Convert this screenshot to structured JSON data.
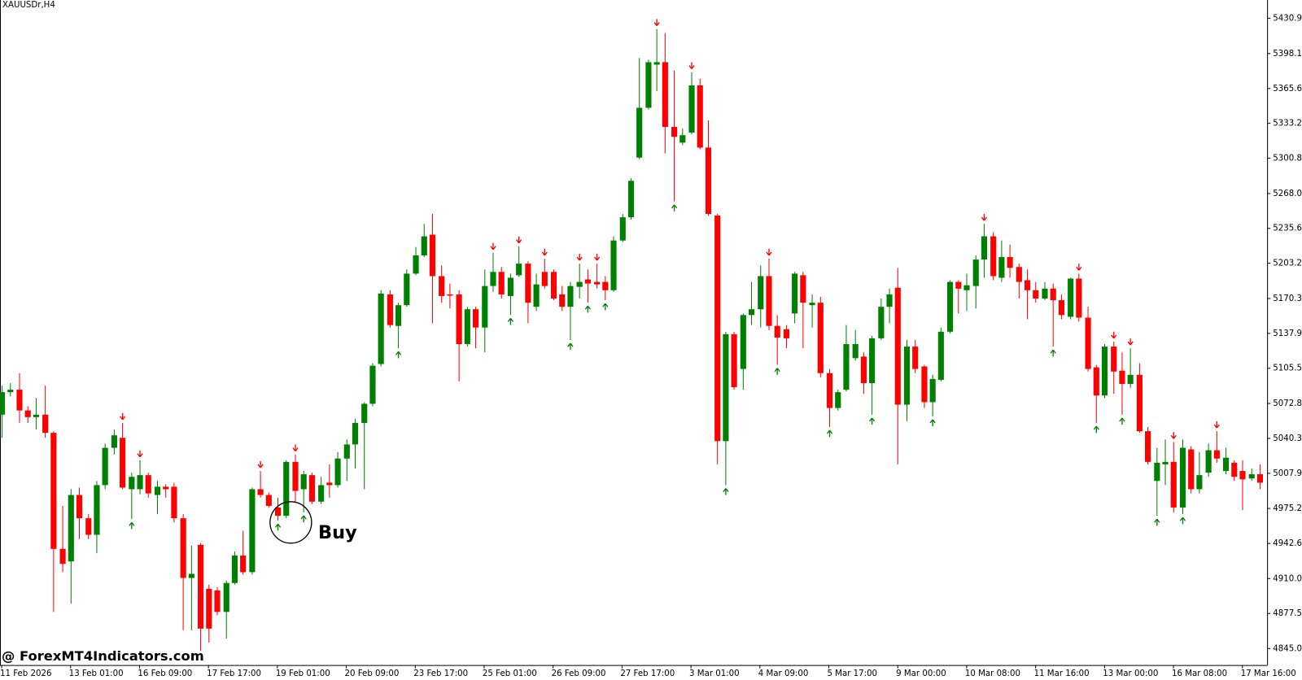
{
  "chart_data": {
    "type": "candlestick",
    "title": "XAUUSDr,H4",
    "annotation": "Buy",
    "watermark": "@ ForexMT4Indicators.com",
    "up_color": "#008000",
    "down_color": "#ff0000",
    "ylim": [
      4829.6,
      5447.9
    ],
    "yticks": [
      {
        "value": 4845.0,
        "label": "4845.00"
      },
      {
        "value": 4877.55,
        "label": "4877.55"
      },
      {
        "value": 4910.05,
        "label": "4910.05"
      },
      {
        "value": 4942.65,
        "label": "4942.65"
      },
      {
        "value": 4975.2,
        "label": "4975.20"
      },
      {
        "value": 5007.9,
        "label": "5007.90"
      },
      {
        "value": 5040.3,
        "label": "5040.30"
      },
      {
        "value": 5072.8,
        "label": "5072.80"
      },
      {
        "value": 5105.55,
        "label": "5105.55"
      },
      {
        "value": 5137.95,
        "label": "5137.95"
      },
      {
        "value": 5170.35,
        "label": "5170.35"
      },
      {
        "value": 5203.2,
        "label": "5203.20"
      },
      {
        "value": 5235.6,
        "label": "5235.60"
      },
      {
        "value": 5268.0,
        "label": "5268.00"
      },
      {
        "value": 5300.85,
        "label": "5300.85"
      },
      {
        "value": 5333.25,
        "label": "5333.25"
      },
      {
        "value": 5365.65,
        "label": "5365.65"
      },
      {
        "value": 5398.15,
        "label": "5398.15"
      },
      {
        "value": 5430.9,
        "label": "5430.90"
      }
    ],
    "categories": [
      "11 Feb 2026",
      null,
      null,
      null,
      null,
      null,
      null,
      null,
      "13 Feb 01:00",
      null,
      null,
      null,
      null,
      null,
      null,
      null,
      "16 Feb 09:00",
      null,
      null,
      null,
      null,
      null,
      null,
      null,
      "17 Feb 17:00",
      null,
      null,
      null,
      null,
      null,
      null,
      null,
      "19 Feb 01:00",
      null,
      null,
      null,
      null,
      null,
      null,
      null,
      "20 Feb 09:00",
      null,
      null,
      null,
      null,
      null,
      null,
      null,
      "23 Feb 17:00",
      null,
      null,
      null,
      null,
      null,
      null,
      null,
      "25 Feb 01:00",
      null,
      null,
      null,
      null,
      null,
      null,
      null,
      "26 Feb 09:00",
      null,
      null,
      null,
      null,
      null,
      null,
      null,
      "27 Feb 17:00",
      null,
      null,
      null,
      null,
      null,
      null,
      null,
      "3 Mar 01:00",
      null,
      null,
      null,
      null,
      null,
      null,
      null,
      "4 Mar 09:00",
      null,
      null,
      null,
      null,
      null,
      null,
      null,
      "5 Mar 17:00",
      null,
      null,
      null,
      null,
      null,
      null,
      null,
      "9 Mar 00:00",
      null,
      null,
      null,
      null,
      null,
      null,
      null,
      "10 Mar 08:00",
      null,
      null,
      null,
      null,
      null,
      null,
      null,
      "11 Mar 16:00",
      null,
      null,
      null,
      null,
      null,
      null,
      null,
      "13 Mar 00:00",
      null,
      null,
      null,
      null,
      null,
      null,
      null,
      "16 Mar 08:00",
      null,
      null,
      null,
      null,
      null,
      null,
      null,
      "17 Mar 16:00",
      null,
      null
    ],
    "open": [
      5062.4,
      5083.3,
      5085.6,
      5066.3,
      5060.1,
      5062.4,
      5045.5,
      4937.6,
      4926.0,
      4987.7,
      4966.1,
      4950.7,
      4996.9,
      5031.6,
      5040.9,
      4993.1,
      4993.1,
      5006.2,
      4987.7,
      4995.4,
      4995.4,
      4966.1,
      4910.6,
      4941.4,
      4900.5,
      4899.0,
      4879.0,
      4905.9,
      4931.4,
      4916.0,
      4993.1,
      4987.7,
      4976.1,
      4968.4,
      5018.5,
      4993.1,
      5006.2,
      4981.5,
      4999.2,
      4996.9,
      5021.6,
      5034.7,
      5054.7,
      5072.5,
      5109.5,
      5174.2,
      5144.9,
      5164.2,
      5193.5,
      5210.5,
      5229.7,
      5191.2,
      5174.2,
      5174.2,
      5128.0,
      5160.4,
      5143.4,
      5182.0,
      5195.1,
      5172.7,
      5192.0,
      5202.8,
      5162.7,
      5195.1,
      5195.1,
      5174.2,
      5162.7,
      5181.2,
      5188.1,
      5185.8,
      5185.8,
      5178.1,
      5224.3,
      5245.9,
      5301.4,
      5347.7,
      5387.8,
      5390.1,
      5329.9,
      5315.3,
      5324.6,
      5368.5,
      5310.7,
      5247.5,
      5037.8,
      5137.2,
      5104.9,
      5155.0,
      5160.4,
      5191.2,
      5144.9,
      5141.8,
      5156.5,
      5192.0,
      5164.2,
      5166.5,
      5101.0,
      5068.6,
      5085.6,
      5114.9,
      5116.4,
      5091.7,
      5133.4,
      5162.7,
      5180.4,
      5071.7,
      5125.7,
      5107.2,
      5074.0,
      5094.8,
      5139.5,
      5185.8,
      5178.1,
      5182.0,
      5206.6,
      5228.2,
      5189.7,
      5208.9,
      5199.7,
      5187.4,
      5178.1,
      5170.4,
      5179.6,
      5168.8,
      5153.4,
      5188.9,
      5152.6,
      5106.4,
      5080.2,
      5125.7,
      5103.3,
      5091.0,
      5099.4,
      5047.0,
      5000.8,
      5016.2,
      5018.5,
      4976.1,
      5030.1,
      4993.1,
      5008.5,
      5029.3,
      5010.0,
      5017.7,
      5010.0,
      5003.1,
      5007.0
    ],
    "high": [
      5089.4,
      5091.7,
      5101.0,
      5070.2,
      5077.9,
      5089.4,
      5047.0,
      4977.6,
      4993.1,
      4994.6,
      4969.9,
      5000.8,
      5035.5,
      5048.6,
      5054.7,
      5008.5,
      5020.0,
      5008.5,
      5000.8,
      4997.7,
      4999.2,
      4969.9,
      4940.6,
      4943.0,
      4904.4,
      4902.1,
      4908.3,
      4935.3,
      4954.5,
      4994.6,
      5010.0,
      4990.0,
      4985.3,
      5020.0,
      5025.4,
      5010.0,
      5008.5,
      5004.6,
      5016.2,
      5027.7,
      5039.3,
      5058.6,
      5074.0,
      5110.3,
      5178.1,
      5178.1,
      5166.5,
      5197.4,
      5218.2,
      5239.8,
      5249.0,
      5201.2,
      5184.3,
      5178.1,
      5162.7,
      5162.7,
      5197.4,
      5212.8,
      5199.7,
      5193.5,
      5218.9,
      5205.1,
      5193.5,
      5207.4,
      5197.4,
      5182.0,
      5185.8,
      5202.8,
      5197.4,
      5202.8,
      5191.2,
      5228.2,
      5249.0,
      5282.2,
      5393.9,
      5392.4,
      5420.9,
      5417.1,
      5382.4,
      5328.4,
      5380.8,
      5374.7,
      5336.1,
      5249.0,
      5139.5,
      5139.5,
      5156.5,
      5185.8,
      5201.2,
      5207.4,
      5155.0,
      5145.7,
      5195.1,
      5195.1,
      5174.2,
      5171.9,
      5104.9,
      5085.6,
      5145.7,
      5141.1,
      5120.3,
      5135.7,
      5170.4,
      5179.6,
      5198.9,
      5131.8,
      5131.8,
      5108.7,
      5099.5,
      5143.4,
      5187.4,
      5187.4,
      5193.5,
      5210.5,
      5239.8,
      5232.0,
      5224.3,
      5220.5,
      5202.8,
      5197.4,
      5185.8,
      5185.8,
      5184.3,
      5174.2,
      5189.7,
      5193.5,
      5162.7,
      5108.7,
      5128.0,
      5130.3,
      5120.3,
      5124.1,
      5110.3,
      5050.9,
      5031.6,
      5039.3,
      5037.0,
      5039.3,
      5033.1,
      5027.7,
      5035.5,
      5047.0,
      5031.6,
      5020.0,
      5020.0,
      5012.3,
      5016.2
    ],
    "low": [
      5040.9,
      5079.4,
      5054.7,
      5054.7,
      5048.6,
      5040.9,
      4879.0,
      4916.0,
      4886.7,
      4946.8,
      4946.8,
      4933.7,
      4993.1,
      5025.4,
      4993.1,
      4965.3,
      4988.4,
      4985.3,
      4969.9,
      4985.3,
      4962.2,
      4862.0,
      4862.0,
      4842.7,
      4850.5,
      4875.9,
      4854.3,
      4904.4,
      4913.7,
      4913.7,
      4985.3,
      4976.1,
      4963.8,
      4966.1,
      4981.5,
      4971.5,
      4979.2,
      4979.2,
      4985.3,
      4994.6,
      5000.8,
      5012.3,
      4993.1,
      5070.2,
      5107.2,
      5143.4,
      5124.1,
      5162.7,
      5192.0,
      5208.9,
      5147.3,
      5166.5,
      5161.1,
      5093.3,
      5125.7,
      5124.1,
      5120.3,
      5176.5,
      5170.4,
      5155.0,
      5190.4,
      5147.3,
      5158.8,
      5179.6,
      5168.8,
      5158.8,
      5131.8,
      5170.4,
      5166.5,
      5179.6,
      5168.8,
      5176.5,
      5222.8,
      5243.6,
      5299.9,
      5346.1,
      5363.1,
      5305.3,
      5260.6,
      5313.0,
      5323.0,
      5309.1,
      5247.5,
      5016.2,
      4996.9,
      5085.6,
      5085.6,
      5145.7,
      5143.4,
      5141.1,
      5108.7,
      5124.1,
      5147.3,
      5124.1,
      5143.4,
      5097.1,
      5050.9,
      5066.3,
      5084.0,
      5112.6,
      5081.7,
      5062.4,
      5131.8,
      5147.3,
      5016.2,
      5056.3,
      5101.0,
      5068.6,
      5060.9,
      5093.3,
      5138.0,
      5156.5,
      5158.8,
      5161.1,
      5189.7,
      5187.4,
      5185.8,
      5189.7,
      5170.4,
      5151.1,
      5166.5,
      5168.8,
      5125.7,
      5151.1,
      5151.1,
      5148.8,
      5102.5,
      5054.7,
      5077.9,
      5081.7,
      5062.4,
      5087.1,
      5045.5,
      5016.2,
      4968.4,
      4996.9,
      4971.5,
      4969.9,
      4989.2,
      4989.2,
      5004.6,
      5017.7,
      5007.0,
      5000.8,
      4973.8,
      5000.8,
      4993.1
    ],
    "close": [
      5083.3,
      5085.6,
      5066.3,
      5060.1,
      5062.4,
      5045.5,
      4937.6,
      4923.7,
      4987.7,
      4966.1,
      4950.7,
      4996.9,
      5031.6,
      5043.2,
      4994.6,
      5004.6,
      5006.2,
      4989.2,
      4995.4,
      4993.1,
      4966.1,
      4910.6,
      4914.4,
      4863.5,
      4863.5,
      4879.0,
      4905.9,
      4931.4,
      4916.0,
      4993.1,
      4987.7,
      4977.6,
      4968.4,
      5018.5,
      4991.5,
      5007.0,
      4981.5,
      4996.9,
      4996.9,
      5021.6,
      5034.7,
      5054.7,
      5072.5,
      5107.9,
      5175.0,
      5145.7,
      5164.2,
      5193.5,
      5210.5,
      5228.2,
      5191.2,
      5172.7,
      5173.5,
      5128.0,
      5160.4,
      5143.4,
      5182.0,
      5195.1,
      5174.2,
      5189.7,
      5202.8,
      5166.5,
      5183.5,
      5182.0,
      5170.4,
      5162.7,
      5182.0,
      5185.8,
      5184.3,
      5183.5,
      5178.1,
      5224.3,
      5245.9,
      5279.8,
      5347.7,
      5390.1,
      5390.1,
      5329.9,
      5320.7,
      5322.2,
      5368.5,
      5310.7,
      5249.0,
      5037.8,
      5137.2,
      5087.9,
      5155.0,
      5160.4,
      5191.2,
      5144.9,
      5134.1,
      5133.4,
      5193.5,
      5166.5,
      5166.5,
      5101.0,
      5068.6,
      5083.3,
      5128.0,
      5128.0,
      5091.7,
      5133.4,
      5162.7,
      5174.2,
      5071.7,
      5125.7,
      5104.9,
      5074.0,
      5095.6,
      5139.5,
      5185.8,
      5179.6,
      5182.7,
      5206.6,
      5228.2,
      5191.2,
      5208.9,
      5198.9,
      5185.8,
      5178.1,
      5170.4,
      5179.6,
      5168.8,
      5155.0,
      5188.9,
      5152.6,
      5104.9,
      5080.2,
      5125.7,
      5102.5,
      5091.0,
      5099.4,
      5047.0,
      5018.5,
      5017.7,
      5018.5,
      4976.1,
      5031.6,
      4993.1,
      5006.2,
      5029.3,
      5021.6,
      5022.4,
      5004.6,
      5002.3,
      5007.0,
      4999.2
    ],
    "down_arrows": [
      14,
      16,
      30,
      34,
      57,
      60,
      63,
      67,
      69,
      76,
      80,
      89,
      114,
      125,
      129,
      131,
      136,
      141
    ],
    "up_arrows": [
      15,
      32,
      35,
      46,
      59,
      66,
      68,
      70,
      78,
      84,
      90,
      96,
      101,
      108,
      122,
      127,
      130,
      134,
      137
    ]
  }
}
